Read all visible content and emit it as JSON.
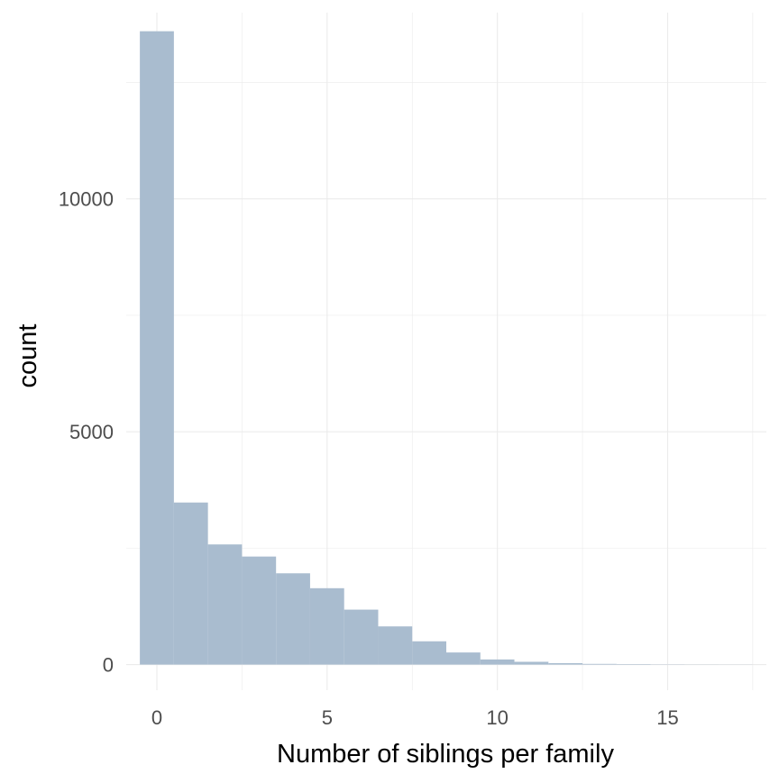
{
  "chart_data": {
    "type": "bar",
    "title": "",
    "xlabel": "Number of siblings per family",
    "ylabel": "count",
    "bar_color": "#a9bccf",
    "gridline_color": "#ebebeb",
    "grid": true,
    "xlim": [
      -0.9,
      17.9
    ],
    "ylim": [
      -550,
      14000
    ],
    "x_ticks": [
      0,
      5,
      10,
      15
    ],
    "x_tick_labels": [
      "0",
      "5",
      "10",
      "15"
    ],
    "y_ticks": [
      0,
      5000,
      10000
    ],
    "y_tick_labels": [
      "0",
      "5000",
      "10000"
    ],
    "bin_width": 1,
    "categories": [
      0,
      1,
      2,
      3,
      4,
      5,
      6,
      7,
      8,
      9,
      10,
      11,
      12,
      13,
      14,
      15,
      16,
      17
    ],
    "values": [
      13600,
      3480,
      2580,
      2320,
      1960,
      1640,
      1180,
      820,
      500,
      260,
      110,
      60,
      30,
      15,
      10,
      5,
      3,
      2
    ]
  }
}
